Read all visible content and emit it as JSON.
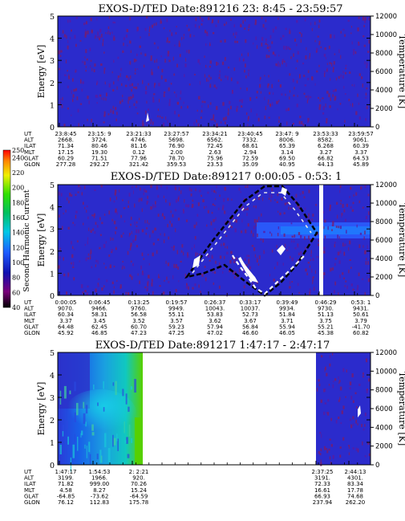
{
  "chart_data": [
    {
      "type": "heatmap",
      "title": "EXOS-D/TED   Date:891216  23: 8:45 - 23:59:57",
      "ylabel": "Energy [eV]",
      "ylabel_right": "Temperature [K]",
      "ylim": [
        0,
        5
      ],
      "ylim_right": [
        0,
        12000
      ],
      "yticks": [
        "0",
        "1",
        "2",
        "3",
        "4",
        "5"
      ],
      "yticks_right": [
        "0",
        "2000",
        "4000",
        "6000",
        "8000",
        "10000",
        "12000"
      ],
      "orbit_labels": [
        "UT",
        "ALT",
        "ILAT",
        "MLT",
        "GLAT",
        "GLON"
      ],
      "orbit_columns": [
        [
          "23:8:45",
          "2668.",
          "71.34",
          "17.15",
          "60.29",
          "277.28"
        ],
        [
          "23:15: 9",
          "3724.",
          "80.46",
          "19.30",
          "71.51",
          "292.27"
        ],
        [
          "23:21:33",
          "4746.",
          "81.16",
          "0.12",
          "77.96",
          "321.42"
        ],
        [
          "23:27:57",
          "5698.",
          "76.90",
          "2.00",
          "78.70",
          "359.53"
        ],
        [
          "23:34:21",
          "6562.",
          "72.45",
          "2.63",
          "75.96",
          "23.53"
        ],
        [
          "23:40:45",
          "7332.",
          "68.61",
          "2.94",
          "72.59",
          "35.09"
        ],
        [
          "23:47: 9",
          "8006.",
          "65.39",
          "3.14",
          "69.50",
          "40.95"
        ],
        [
          "23:53:33",
          "8582.",
          "6.268",
          "3.27",
          "66.82",
          "44.13"
        ],
        [
          "23:59:57",
          "9061.",
          "60.39",
          "3.37",
          "64.53",
          "45.89"
        ]
      ]
    },
    {
      "type": "heatmap",
      "title": "EXOS-D/TED   Date:891217  0:00:05 - 0:53: 1",
      "ylabel": "Energy [eV]",
      "ylabel_right": "Temperature [K]",
      "ylim": [
        0,
        5
      ],
      "ylim_right": [
        0,
        12000
      ],
      "yticks": [
        "0",
        "1",
        "2",
        "3",
        "4",
        "5"
      ],
      "yticks_right": [
        "0",
        "2000",
        "4000",
        "6000",
        "8000",
        "10000",
        "12000"
      ],
      "colorbar_label": "Second Harmonic Current",
      "colorbar_ticks": [
        "40",
        "60",
        "80",
        "100",
        "120",
        "140",
        "160",
        "180",
        "200",
        "220",
        "240",
        "250"
      ],
      "orbit_labels": [
        "UT",
        "ALT",
        "ILAT",
        "MLT",
        "GLAT",
        "GLON"
      ],
      "orbit_columns": [
        [
          "0:00:05",
          "9070.",
          "60.34",
          "3.37",
          "64.48",
          "45.92"
        ],
        [
          "0:06:45",
          "9466.",
          "58.31",
          "3.45",
          "62.45",
          "46.85"
        ],
        [
          "0:13:25",
          "9760.",
          "56.58",
          "3.52",
          "60.70",
          "47.23"
        ],
        [
          "0:19:57",
          "9949.",
          "55.11",
          "3.57",
          "59.23",
          "47.25"
        ],
        [
          "0:26:37",
          "10043.",
          "53.83",
          "3.62",
          "57.94",
          "47.02"
        ],
        [
          "0:33:17",
          "10037.",
          "52.73",
          "3.67",
          "56.84",
          "46.60"
        ],
        [
          "0:39:49",
          "9934.",
          "51.84",
          "3.71",
          "55.94",
          "46.05"
        ],
        [
          "0:46:29",
          "9730.",
          "51.13",
          "3.75",
          "55.21",
          "45.38"
        ],
        [
          "0:53: 1",
          "9431.",
          "50.61",
          "3.79",
          "-41.70",
          "60.82"
        ]
      ]
    },
    {
      "type": "heatmap",
      "title": "EXOS-D/TED   Date:891217  1:47:17 - 2:47:17",
      "ylabel": "Energy [eV]",
      "ylabel_right": "Temperature [K]",
      "ylim": [
        0,
        5
      ],
      "ylim_right": [
        0,
        12000
      ],
      "yticks": [
        "0",
        "1",
        "2",
        "3",
        "4",
        "5"
      ],
      "yticks_right": [
        "0",
        "2000",
        "4000",
        "6000",
        "8000",
        "10000",
        "12000"
      ],
      "orbit_labels": [
        "UT",
        "ALT",
        "ILAT",
        "MLT",
        "GLAT",
        "GLON"
      ],
      "orbit_columns": [
        [
          "1:47:17",
          "3199.",
          "71.82",
          "4.58",
          "-64.85",
          "76.12"
        ],
        [
          "1:54:53",
          "1966.",
          "999.00",
          "8.27",
          "-73.62",
          "112.83"
        ],
        [
          "2: 2:21",
          "920.",
          "70.26",
          "15.24",
          "-64.59",
          "175.78"
        ],
        [
          "2:37:25",
          "3191.",
          "72.33",
          "16.61",
          "66.93",
          "237.94"
        ],
        [
          "2:44:13",
          "4301.",
          "83.34",
          "17.78",
          "74.68",
          "262.20"
        ]
      ]
    }
  ]
}
